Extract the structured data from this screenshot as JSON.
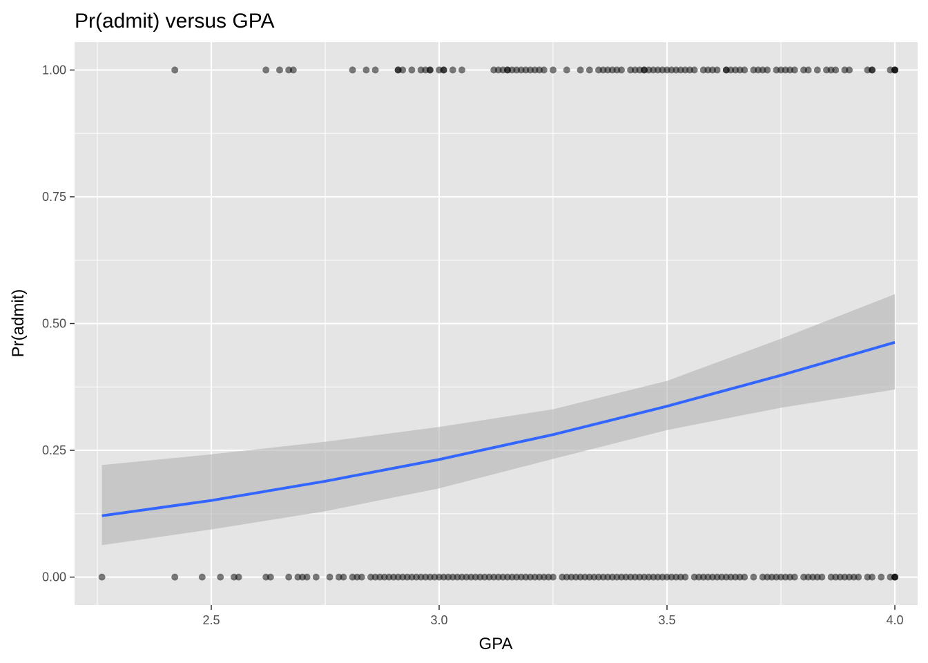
{
  "chart_data": {
    "type": "scatter",
    "title": "Pr(admit) versus GPA",
    "xlabel": "GPA",
    "ylabel": "Pr(admit)",
    "xlim": [
      2.2,
      4.05
    ],
    "ylim": [
      -0.055,
      1.055
    ],
    "xticks": [
      2.5,
      3.0,
      3.5,
      4.0
    ],
    "xtick_labels": [
      "2.5",
      "3.0",
      "3.5",
      "4.0"
    ],
    "yticks": [
      0.0,
      0.25,
      0.5,
      0.75,
      1.0
    ],
    "ytick_labels": [
      "0.00",
      "0.25",
      "0.50",
      "0.75",
      "1.00"
    ],
    "grid": true,
    "colors": {
      "panel": "#e5e5e5",
      "grid": "#ffffff",
      "points": "#000000",
      "fit_line": "#3366ff",
      "ribbon": "#b3b3b3"
    },
    "points": {
      "admitted_1": [
        2.42,
        2.62,
        2.65,
        2.67,
        2.68,
        2.81,
        2.84,
        2.86,
        2.91,
        2.91,
        2.92,
        2.94,
        2.96,
        2.97,
        2.98,
        2.98,
        3.0,
        3.01,
        3.01,
        3.03,
        3.05,
        3.12,
        3.13,
        3.14,
        3.15,
        3.15,
        3.16,
        3.17,
        3.18,
        3.19,
        3.2,
        3.21,
        3.22,
        3.23,
        3.25,
        3.28,
        3.31,
        3.33,
        3.35,
        3.36,
        3.37,
        3.38,
        3.39,
        3.4,
        3.42,
        3.43,
        3.44,
        3.45,
        3.45,
        3.46,
        3.47,
        3.48,
        3.49,
        3.5,
        3.51,
        3.52,
        3.53,
        3.54,
        3.55,
        3.56,
        3.58,
        3.59,
        3.6,
        3.61,
        3.63,
        3.63,
        3.64,
        3.65,
        3.66,
        3.67,
        3.69,
        3.7,
        3.71,
        3.72,
        3.74,
        3.75,
        3.76,
        3.77,
        3.78,
        3.8,
        3.81,
        3.83,
        3.85,
        3.86,
        3.87,
        3.89,
        3.9,
        3.94,
        3.95,
        3.95,
        3.99,
        4.0,
        4.0,
        4.0
      ],
      "admitted_0": [
        2.26,
        2.42,
        2.48,
        2.52,
        2.55,
        2.56,
        2.62,
        2.63,
        2.67,
        2.69,
        2.7,
        2.71,
        2.73,
        2.76,
        2.78,
        2.79,
        2.81,
        2.82,
        2.83,
        2.85,
        2.86,
        2.87,
        2.88,
        2.89,
        2.9,
        2.91,
        2.92,
        2.93,
        2.94,
        2.95,
        2.96,
        2.97,
        2.98,
        2.99,
        3.0,
        3.01,
        3.02,
        3.03,
        3.04,
        3.05,
        3.06,
        3.07,
        3.08,
        3.09,
        3.1,
        3.11,
        3.12,
        3.13,
        3.14,
        3.15,
        3.16,
        3.17,
        3.18,
        3.19,
        3.2,
        3.21,
        3.22,
        3.23,
        3.24,
        3.25,
        3.27,
        3.28,
        3.29,
        3.3,
        3.31,
        3.32,
        3.33,
        3.34,
        3.35,
        3.36,
        3.37,
        3.38,
        3.39,
        3.4,
        3.41,
        3.42,
        3.43,
        3.44,
        3.45,
        3.46,
        3.47,
        3.48,
        3.49,
        3.5,
        3.51,
        3.52,
        3.53,
        3.54,
        3.56,
        3.57,
        3.58,
        3.59,
        3.6,
        3.61,
        3.62,
        3.63,
        3.64,
        3.65,
        3.66,
        3.67,
        3.69,
        3.71,
        3.72,
        3.73,
        3.74,
        3.75,
        3.76,
        3.77,
        3.78,
        3.8,
        3.81,
        3.82,
        3.83,
        3.84,
        3.86,
        3.87,
        3.88,
        3.89,
        3.9,
        3.91,
        3.92,
        3.94,
        3.95,
        3.97,
        3.99,
        4.0,
        4.0,
        4.0
      ]
    },
    "fit": {
      "x": [
        2.26,
        2.5,
        2.75,
        3.0,
        3.25,
        3.5,
        3.75,
        4.0
      ],
      "y": [
        0.121,
        0.151,
        0.189,
        0.232,
        0.281,
        0.337,
        0.398,
        0.463
      ],
      "lower": [
        0.063,
        0.094,
        0.13,
        0.175,
        0.233,
        0.29,
        0.334,
        0.37
      ],
      "upper": [
        0.221,
        0.242,
        0.267,
        0.296,
        0.331,
        0.387,
        0.47,
        0.558
      ]
    }
  }
}
